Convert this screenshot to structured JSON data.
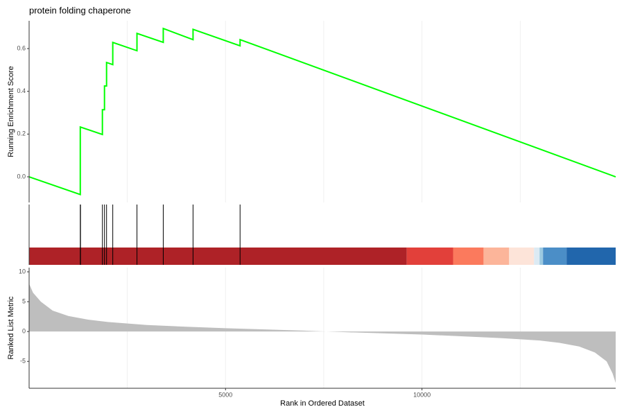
{
  "chart_data": [
    {
      "type": "line",
      "title": "protein folding chaperone",
      "ylabel": "Running Enrichment Score",
      "x": [
        1,
        1303,
        1303,
        1866,
        1866,
        1919,
        1919,
        1972,
        1972,
        2130,
        2130,
        2746,
        2746,
        3415,
        3415,
        4173,
        4173,
        5370,
        5370,
        14930
      ],
      "series": [
        {
          "color": "#00ff00",
          "values": [
            0,
            -0.083,
            0.233,
            0.198,
            0.314,
            0.314,
            0.425,
            0.425,
            0.535,
            0.525,
            0.629,
            0.59,
            0.671,
            0.629,
            0.694,
            0.642,
            0.69,
            0.613,
            0.642,
            0
          ]
        }
      ],
      "xlim": [
        1,
        14930
      ],
      "ylim": [
        -0.12,
        0.73
      ],
      "yticks": [
        {
          "value": 0,
          "label": "0.0"
        },
        0.2,
        0.4,
        0.6
      ],
      "xgrid": [
        2500,
        5000,
        7500,
        10000,
        12500
      ]
    },
    {
      "type": "barcode",
      "x": [
        1303,
        1309,
        1866,
        1919,
        1972,
        2130,
        2746,
        3415,
        4173,
        5370
      ],
      "color": "#000000",
      "xlim": [
        1,
        14930
      ],
      "bands": {
        "edges": [
          1,
          9613,
          10792,
          11567,
          12218,
          12852,
          12993,
          13081,
          13680,
          14930
        ],
        "colors": [
          "#ae2227",
          "#e2403a",
          "#fb7a5d",
          "#fcb59a",
          "#fde4d9",
          "#dceaf3",
          "#9cc9e1",
          "#4b8ec7",
          "#2166ac"
        ]
      }
    },
    {
      "type": "area",
      "xlabel": "Rank in Ordered Dataset",
      "ylabel": "Ranked List Metric",
      "x": [
        1,
        100,
        300,
        600,
        1000,
        1500,
        2000,
        3000,
        4000,
        5000,
        6000,
        7000,
        7500,
        8000,
        9000,
        10000,
        11000,
        12000,
        13000,
        13500,
        14000,
        14400,
        14700,
        14850,
        14930
      ],
      "values": [
        8,
        6.5,
        5,
        3.5,
        2.6,
        2,
        1.6,
        1.1,
        0.8,
        0.55,
        0.35,
        0.15,
        0.02,
        -0.1,
        -0.3,
        -0.5,
        -0.8,
        -1.1,
        -1.5,
        -1.9,
        -2.5,
        -3.5,
        -5,
        -7,
        -8.6
      ],
      "color": "#bebebe",
      "xlim": [
        1,
        14930
      ],
      "ylim": [
        -9.5,
        10.7
      ],
      "yticks": [
        -5,
        0,
        5,
        10
      ],
      "xticks": [
        5000,
        10000
      ],
      "xgrid": [
        2500,
        5000,
        7500,
        10000,
        12500
      ]
    }
  ]
}
